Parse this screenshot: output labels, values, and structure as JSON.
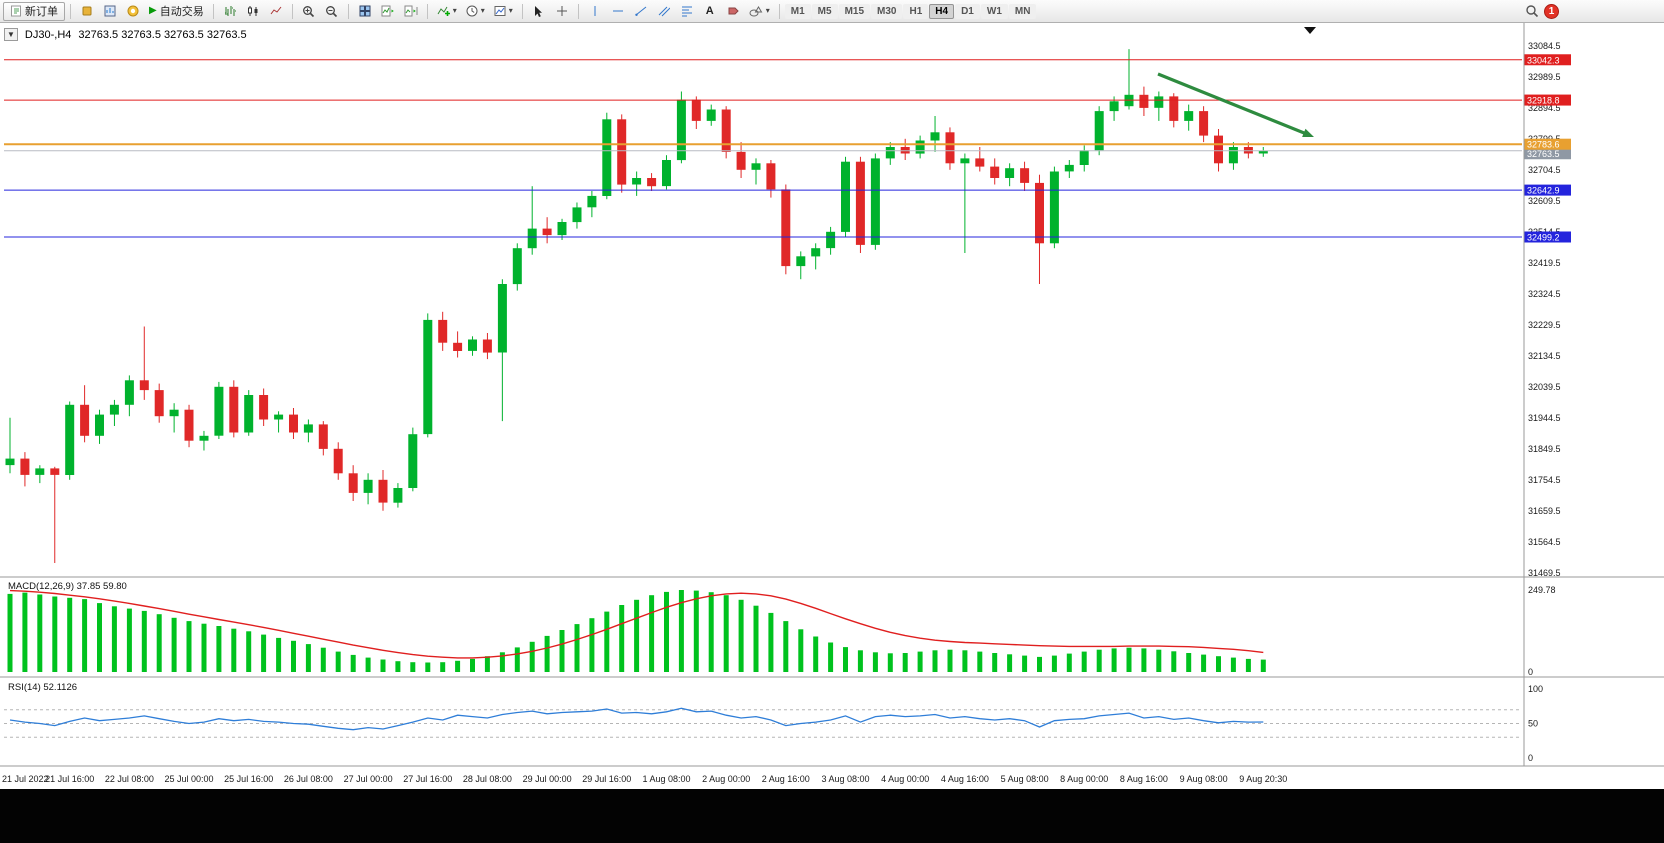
{
  "icons": {
    "symbol_dropdown": "▼",
    "dropdown_caret": "▾",
    "auto_play": "▶",
    "text_tool": "A"
  },
  "toolbar": {
    "new_order_label": "新订单",
    "auto_trading_label": "自动交易",
    "timeframes": [
      "M1",
      "M5",
      "M15",
      "M30",
      "H1",
      "H4",
      "D1",
      "W1",
      "MN"
    ],
    "active_timeframe": "H4",
    "notification_count": "1"
  },
  "chart_data": {
    "type": "candlestick+indicators",
    "title_symbol": "DJ30-,H4",
    "title_quotes": "32763.5 32763.5 32763.5 32763.5",
    "up_color": "#00b22d",
    "down_color": "#e02828",
    "y_axis": {
      "ticks": [
        33084.5,
        32989.5,
        32894.5,
        32799.5,
        32704.5,
        32609.5,
        32514.5,
        32419.5,
        32324.5,
        32229.5,
        32134.5,
        32039.5,
        31944.5,
        31849.5,
        31754.5,
        31659.5,
        31564.5,
        31469.5
      ]
    },
    "price_lines": [
      {
        "price": 33042.3,
        "label": "33042.3",
        "color": "#e01f1f",
        "width": 1
      },
      {
        "price": 32918.8,
        "label": "32918.8",
        "color": "#e01f1f",
        "width": 1
      },
      {
        "price": 32783.6,
        "label": "32783.6",
        "color": "#e8a030",
        "width": 2
      },
      {
        "price": 32642.9,
        "label": "32642.9",
        "color": "#2424dd",
        "width": 1
      },
      {
        "price": 32499.2,
        "label": "32499.2",
        "color": "#2424dd",
        "width": 1
      }
    ],
    "bid": {
      "price": 32763.5,
      "label": "32763.5",
      "line_color": "#b8bcc4",
      "tag_color": "#8f98a4"
    },
    "arrow": {
      "from": [
        1158,
        51
      ],
      "to": [
        1314,
        114
      ],
      "color": "#2e8b3f"
    },
    "candles": [
      [
        31800,
        31945,
        31775,
        31820
      ],
      [
        31820,
        31840,
        31735,
        31770
      ],
      [
        31770,
        31800,
        31745,
        31790
      ],
      [
        31790,
        31795,
        31500,
        31770
      ],
      [
        31770,
        31995,
        31755,
        31985
      ],
      [
        31985,
        32045,
        31870,
        31890
      ],
      [
        31890,
        31970,
        31865,
        31955
      ],
      [
        31955,
        32000,
        31920,
        31985
      ],
      [
        31985,
        32075,
        31950,
        32060
      ],
      [
        32060,
        32225,
        32000,
        32030
      ],
      [
        32030,
        32050,
        31930,
        31950
      ],
      [
        31950,
        31990,
        31900,
        31970
      ],
      [
        31970,
        31985,
        31855,
        31875
      ],
      [
        31875,
        31905,
        31845,
        31890
      ],
      [
        31890,
        32055,
        31880,
        32040
      ],
      [
        32040,
        32060,
        31885,
        31900
      ],
      [
        31900,
        32030,
        31890,
        32015
      ],
      [
        32015,
        32035,
        31920,
        31940
      ],
      [
        31940,
        31965,
        31900,
        31955
      ],
      [
        31955,
        31975,
        31880,
        31900
      ],
      [
        31900,
        31940,
        31870,
        31925
      ],
      [
        31925,
        31935,
        31830,
        31850
      ],
      [
        31850,
        31870,
        31755,
        31775
      ],
      [
        31775,
        31800,
        31690,
        31715
      ],
      [
        31715,
        31775,
        31680,
        31755
      ],
      [
        31755,
        31785,
        31660,
        31685
      ],
      [
        31685,
        31745,
        31670,
        31730
      ],
      [
        31730,
        31915,
        31720,
        31895
      ],
      [
        31895,
        32265,
        31885,
        32245
      ],
      [
        32245,
        32270,
        32150,
        32175
      ],
      [
        32175,
        32210,
        32130,
        32150
      ],
      [
        32150,
        32195,
        32135,
        32185
      ],
      [
        32185,
        32205,
        32125,
        32145
      ],
      [
        32145,
        32370,
        31935,
        32355
      ],
      [
        32355,
        32480,
        32335,
        32465
      ],
      [
        32465,
        32655,
        32445,
        32525
      ],
      [
        32525,
        32560,
        32480,
        32505
      ],
      [
        32505,
        32555,
        32490,
        32545
      ],
      [
        32545,
        32605,
        32525,
        32590
      ],
      [
        32590,
        32640,
        32560,
        32625
      ],
      [
        32625,
        32880,
        32615,
        32860
      ],
      [
        32860,
        32875,
        32635,
        32660
      ],
      [
        32660,
        32700,
        32625,
        32680
      ],
      [
        32680,
        32695,
        32640,
        32655
      ],
      [
        32655,
        32750,
        32645,
        32735
      ],
      [
        32735,
        32945,
        32725,
        32920
      ],
      [
        32920,
        32930,
        32830,
        32855
      ],
      [
        32855,
        32905,
        32840,
        32890
      ],
      [
        32890,
        32900,
        32740,
        32760
      ],
      [
        32760,
        32790,
        32680,
        32705
      ],
      [
        32705,
        32740,
        32660,
        32725
      ],
      [
        32725,
        32735,
        32620,
        32645
      ],
      [
        32645,
        32660,
        32385,
        32410
      ],
      [
        32410,
        32455,
        32370,
        32440
      ],
      [
        32440,
        32480,
        32400,
        32465
      ],
      [
        32465,
        32530,
        32445,
        32515
      ],
      [
        32515,
        32745,
        32500,
        32730
      ],
      [
        32730,
        32745,
        32450,
        32475
      ],
      [
        32475,
        32755,
        32460,
        32740
      ],
      [
        32740,
        32790,
        32720,
        32775
      ],
      [
        32775,
        32800,
        32735,
        32755
      ],
      [
        32755,
        32810,
        32740,
        32795
      ],
      [
        32795,
        32870,
        32760,
        32820
      ],
      [
        32820,
        32835,
        32705,
        32725
      ],
      [
        32725,
        32755,
        32450,
        32740
      ],
      [
        32740,
        32775,
        32700,
        32715
      ],
      [
        32715,
        32740,
        32660,
        32680
      ],
      [
        32680,
        32725,
        32655,
        32710
      ],
      [
        32710,
        32730,
        32640,
        32665
      ],
      [
        32665,
        32690,
        32355,
        32480
      ],
      [
        32480,
        32715,
        32465,
        32700
      ],
      [
        32700,
        32735,
        32680,
        32720
      ],
      [
        32720,
        32780,
        32700,
        32765
      ],
      [
        32765,
        32900,
        32750,
        32885
      ],
      [
        32885,
        32930,
        32855,
        32915
      ],
      [
        32900,
        33075,
        32890,
        32935
      ],
      [
        32935,
        32960,
        32870,
        32895
      ],
      [
        32895,
        32945,
        32855,
        32930
      ],
      [
        32930,
        32940,
        32835,
        32855
      ],
      [
        32855,
        32905,
        32825,
        32885
      ],
      [
        32885,
        32900,
        32790,
        32810
      ],
      [
        32810,
        32830,
        32700,
        32725
      ],
      [
        32725,
        32790,
        32705,
        32775
      ],
      [
        32775,
        32790,
        32740,
        32755
      ],
      [
        32755,
        32775,
        32745,
        32763.5
      ]
    ],
    "x_labels": [
      "21 Jul 2022",
      "21 Jul 16:00",
      "22 Jul 08:00",
      "25 Jul 00:00",
      "25 Jul 16:00",
      "26 Jul 08:00",
      "27 Jul 00:00",
      "27 Jul 16:00",
      "28 Jul 08:00",
      "29 Jul 00:00",
      "29 Jul 16:00",
      "1 Aug 08:00",
      "2 Aug 00:00",
      "2 Aug 16:00",
      "3 Aug 08:00",
      "4 Aug 00:00",
      "4 Aug 16:00",
      "5 Aug 08:00",
      "8 Aug 00:00",
      "8 Aug 16:00",
      "9 Aug 08:00",
      "9 Aug 20:30"
    ],
    "macd": {
      "label": "MACD(12,26,9)",
      "value_main": "37.85",
      "value_signal": "59.80",
      "scale_max": 249.78,
      "scale_max_label": "249.78",
      "scale_min_label": "0",
      "hist_color": "#00c21e",
      "signal_color": "#e01f1f",
      "histogram": [
        238,
        242,
        236,
        230,
        226,
        222,
        210,
        200,
        193,
        186,
        176,
        165,
        155,
        147,
        140,
        132,
        124,
        114,
        104,
        95,
        85,
        74,
        62,
        52,
        44,
        38,
        33,
        30,
        29,
        30,
        34,
        40,
        48,
        60,
        75,
        92,
        110,
        128,
        146,
        164,
        184,
        204,
        220,
        234,
        244,
        249.78,
        248,
        243,
        234,
        220,
        202,
        180,
        155,
        130,
        108,
        90,
        76,
        66,
        60,
        57,
        58,
        62,
        66,
        68,
        66,
        62,
        58,
        54,
        50,
        46,
        50,
        56,
        62,
        68,
        72,
        74,
        72,
        68,
        63,
        58,
        53,
        48,
        44,
        40,
        37.85
      ],
      "signal": [
        248,
        246,
        243,
        239,
        234,
        229,
        223,
        216,
        209,
        201,
        193,
        185,
        176,
        168,
        160,
        152,
        144,
        136,
        127,
        118,
        109,
        100,
        91,
        82,
        74,
        66,
        59,
        53,
        48,
        45,
        43,
        43,
        45,
        49,
        55,
        63,
        73,
        85,
        99,
        114,
        130,
        147,
        164,
        181,
        197,
        211,
        223,
        232,
        238,
        240,
        238,
        232,
        222,
        209,
        194,
        178,
        162,
        147,
        133,
        121,
        111,
        103,
        97,
        93,
        90,
        88,
        86,
        84,
        82,
        80,
        79,
        78,
        78,
        78,
        78,
        79,
        79,
        79,
        78,
        77,
        75,
        72,
        69,
        65,
        59.8
      ]
    },
    "rsi": {
      "label": "RSI(14)",
      "value": "52.1126",
      "color": "#2f7ed8",
      "levels": [
        70,
        50,
        30
      ],
      "ticks": [
        100,
        50,
        0
      ],
      "values": [
        55,
        52,
        50,
        47,
        53,
        58,
        54,
        56,
        58,
        61,
        57,
        53,
        50,
        52,
        57,
        54,
        56,
        53,
        52,
        50,
        49,
        46,
        43,
        41,
        44,
        42,
        47,
        52,
        58,
        55,
        62,
        60,
        58,
        63,
        66,
        68,
        64,
        66,
        67,
        68,
        71,
        65,
        66,
        64,
        67,
        72,
        67,
        68,
        62,
        58,
        60,
        55,
        47,
        50,
        52,
        55,
        61,
        52,
        60,
        62,
        60,
        61,
        63,
        58,
        60,
        57,
        55,
        57,
        54,
        45,
        54,
        56,
        57,
        61,
        63,
        65,
        58,
        60,
        56,
        58,
        54,
        51,
        53,
        52,
        52.1126
      ]
    }
  }
}
